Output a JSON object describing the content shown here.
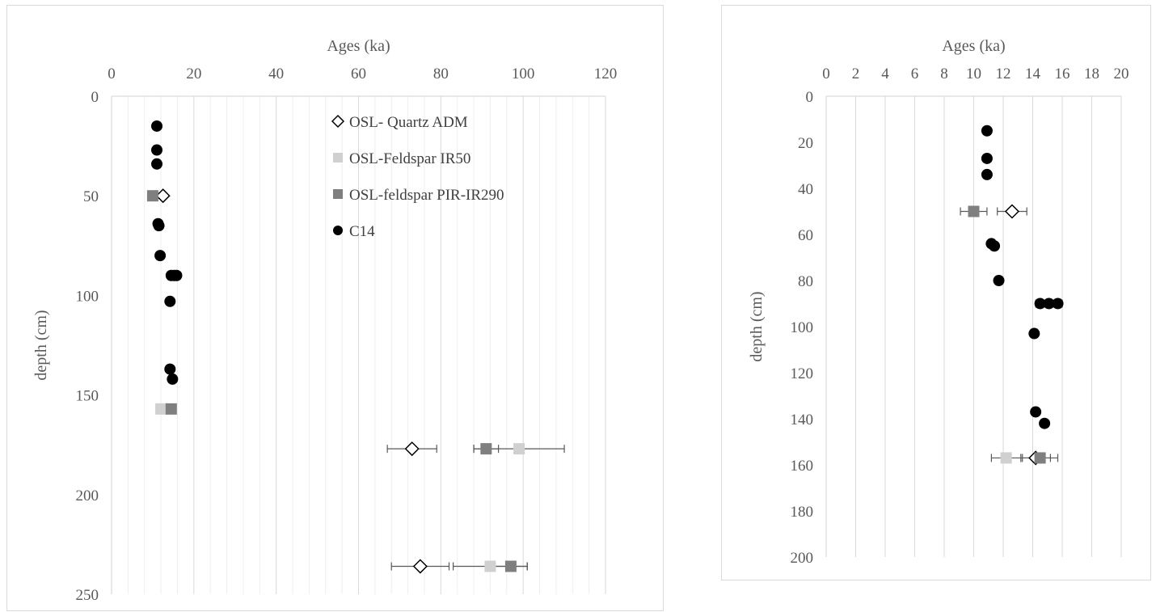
{
  "chart_data": [
    {
      "type": "scatter",
      "title": "",
      "xlabel": "Ages (ka)",
      "ylabel": "depth (cm)",
      "xlim": [
        0,
        120
      ],
      "ylim": [
        0,
        250
      ],
      "y_inverted": true,
      "x_axis_position": "top",
      "x_ticks": [
        "0",
        "20",
        "40",
        "60",
        "80",
        "100",
        "120"
      ],
      "y_ticks": [
        "0",
        "50",
        "100",
        "150",
        "200",
        "250"
      ],
      "grid": "vertical",
      "legend_position": "top-right",
      "series": [
        {
          "name": "OSL- Quartz ADM",
          "marker": "diamond-open",
          "color": "#000000",
          "points": [
            {
              "x": 12.5,
              "y": 50,
              "err": 0
            },
            {
              "x": 73,
              "y": 177,
              "err": 6
            },
            {
              "x": 75,
              "y": 236,
              "err": 7
            }
          ]
        },
        {
          "name": "OSL-Feldspar IR50",
          "marker": "square",
          "color": "#d0d0d0",
          "points": [
            {
              "x": 12,
              "y": 157,
              "err": 0
            },
            {
              "x": 99,
              "y": 177,
              "err": 11
            },
            {
              "x": 92,
              "y": 236,
              "err": 9
            }
          ]
        },
        {
          "name": "OSL-feldspar PIR-IR290",
          "marker": "square",
          "color": "#7f7f7f",
          "points": [
            {
              "x": 10,
              "y": 50,
              "err": 0
            },
            {
              "x": 14.5,
              "y": 157,
              "err": 0
            },
            {
              "x": 91,
              "y": 177,
              "err": 3
            },
            {
              "x": 97,
              "y": 236,
              "err": 4
            }
          ]
        },
        {
          "name": "C14",
          "marker": "circle",
          "color": "#000000",
          "points": [
            {
              "x": 11,
              "y": 15,
              "err": 0
            },
            {
              "x": 11,
              "y": 27,
              "err": 0
            },
            {
              "x": 11,
              "y": 34,
              "err": 0
            },
            {
              "x": 11.3,
              "y": 64,
              "err": 0
            },
            {
              "x": 11.5,
              "y": 65,
              "err": 0
            },
            {
              "x": 11.8,
              "y": 80,
              "err": 0
            },
            {
              "x": 14.5,
              "y": 90,
              "err": 0
            },
            {
              "x": 15.2,
              "y": 90,
              "err": 0
            },
            {
              "x": 15.8,
              "y": 90,
              "err": 0
            },
            {
              "x": 14.2,
              "y": 103,
              "err": 0
            },
            {
              "x": 14.2,
              "y": 137,
              "err": 0
            },
            {
              "x": 14.8,
              "y": 142,
              "err": 0
            }
          ]
        }
      ]
    },
    {
      "type": "scatter",
      "title": "",
      "xlabel": "Ages (ka)",
      "ylabel": "depth (cm)",
      "xlim": [
        0,
        20
      ],
      "ylim": [
        0,
        200
      ],
      "y_inverted": true,
      "x_axis_position": "top",
      "x_ticks": [
        "0",
        "2",
        "4",
        "6",
        "8",
        "10",
        "12",
        "14",
        "16",
        "18",
        "20"
      ],
      "y_ticks": [
        "0",
        "20",
        "40",
        "60",
        "80",
        "100",
        "120",
        "140",
        "160",
        "180",
        "200"
      ],
      "grid": "vertical",
      "series": [
        {
          "marker": "diamond-open",
          "color": "#000000",
          "points": [
            {
              "x": 12.6,
              "y": 50,
              "err": 1.0
            },
            {
              "x": 14.2,
              "y": 157,
              "err": 1.0
            }
          ]
        },
        {
          "marker": "square",
          "color": "#d0d0d0",
          "points": [
            {
              "x": 12.2,
              "y": 157,
              "err": 1.0
            }
          ]
        },
        {
          "marker": "square",
          "color": "#7f7f7f",
          "points": [
            {
              "x": 10,
              "y": 50,
              "err": 0.9
            },
            {
              "x": 14.5,
              "y": 157,
              "err": 1.2
            }
          ]
        },
        {
          "marker": "circle",
          "color": "#000000",
          "points": [
            {
              "x": 10.9,
              "y": 15,
              "err": 0
            },
            {
              "x": 10.9,
              "y": 27,
              "err": 0
            },
            {
              "x": 10.9,
              "y": 34,
              "err": 0
            },
            {
              "x": 11.2,
              "y": 64,
              "err": 0
            },
            {
              "x": 11.4,
              "y": 65,
              "err": 0
            },
            {
              "x": 11.7,
              "y": 80,
              "err": 0.1
            },
            {
              "x": 14.5,
              "y": 90,
              "err": 0.3
            },
            {
              "x": 15.1,
              "y": 90,
              "err": 0
            },
            {
              "x": 15.7,
              "y": 90,
              "err": 0.3
            },
            {
              "x": 14.1,
              "y": 103,
              "err": 0
            },
            {
              "x": 14.2,
              "y": 137,
              "err": 0
            },
            {
              "x": 14.8,
              "y": 142,
              "err": 0.1
            }
          ]
        }
      ]
    }
  ]
}
